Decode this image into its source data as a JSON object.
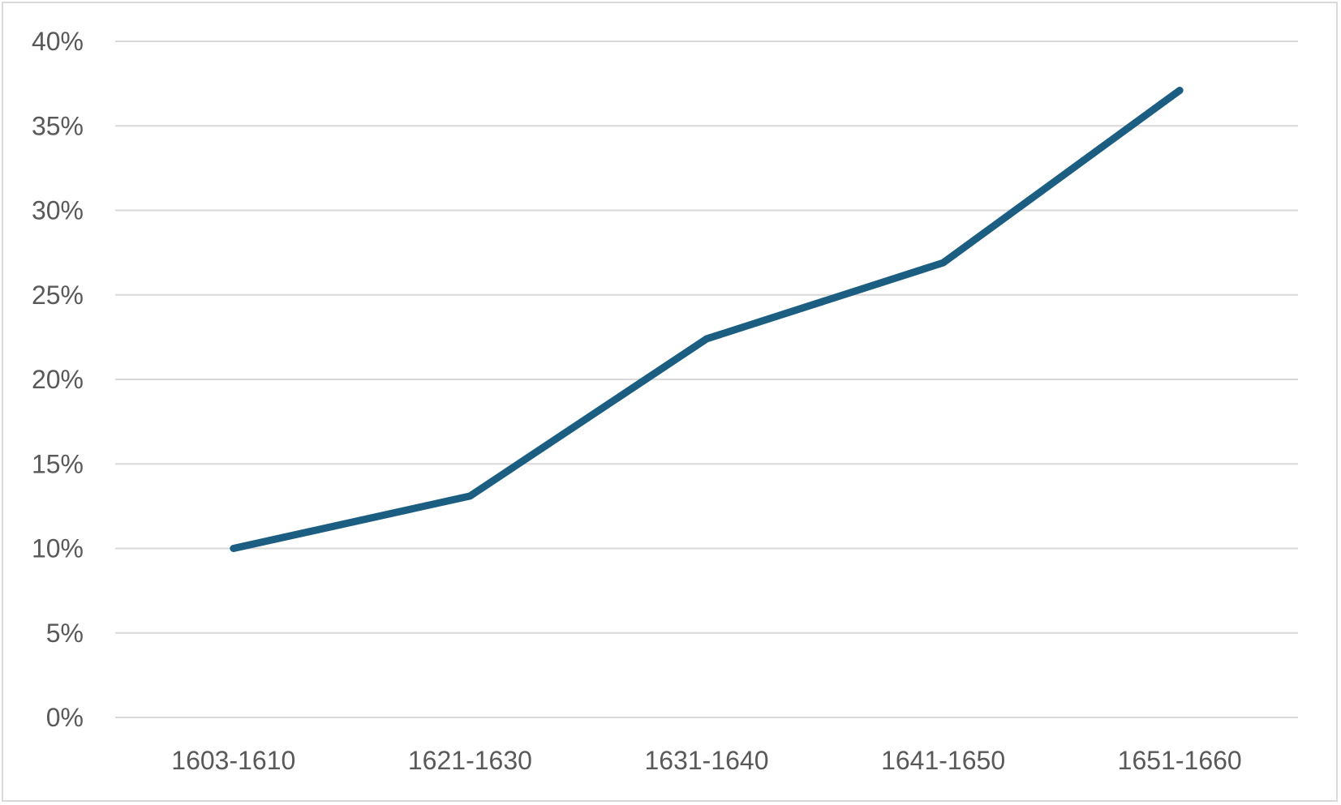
{
  "chart_data": {
    "type": "line",
    "title": "",
    "xlabel": "",
    "ylabel": "",
    "categories": [
      "1603-1610",
      "1621-1630",
      "1631-1640",
      "1641-1650",
      "1651-1660"
    ],
    "series": [
      {
        "values": [
          10.0,
          13.1,
          22.4,
          26.9,
          37.1
        ],
        "color": "#1b5e82"
      }
    ],
    "ylim": [
      0,
      40
    ],
    "yticks": [
      0,
      5,
      10,
      15,
      20,
      25,
      30,
      35,
      40
    ],
    "ytick_labels": [
      "0%",
      "5%",
      "10%",
      "15%",
      "20%",
      "25%",
      "30%",
      "35%",
      "40%"
    ],
    "grid": true,
    "legend": "none",
    "colors": {
      "gridline": "#d9d9d9",
      "tick_text": "#595959",
      "border": "#d9d9d9"
    }
  }
}
